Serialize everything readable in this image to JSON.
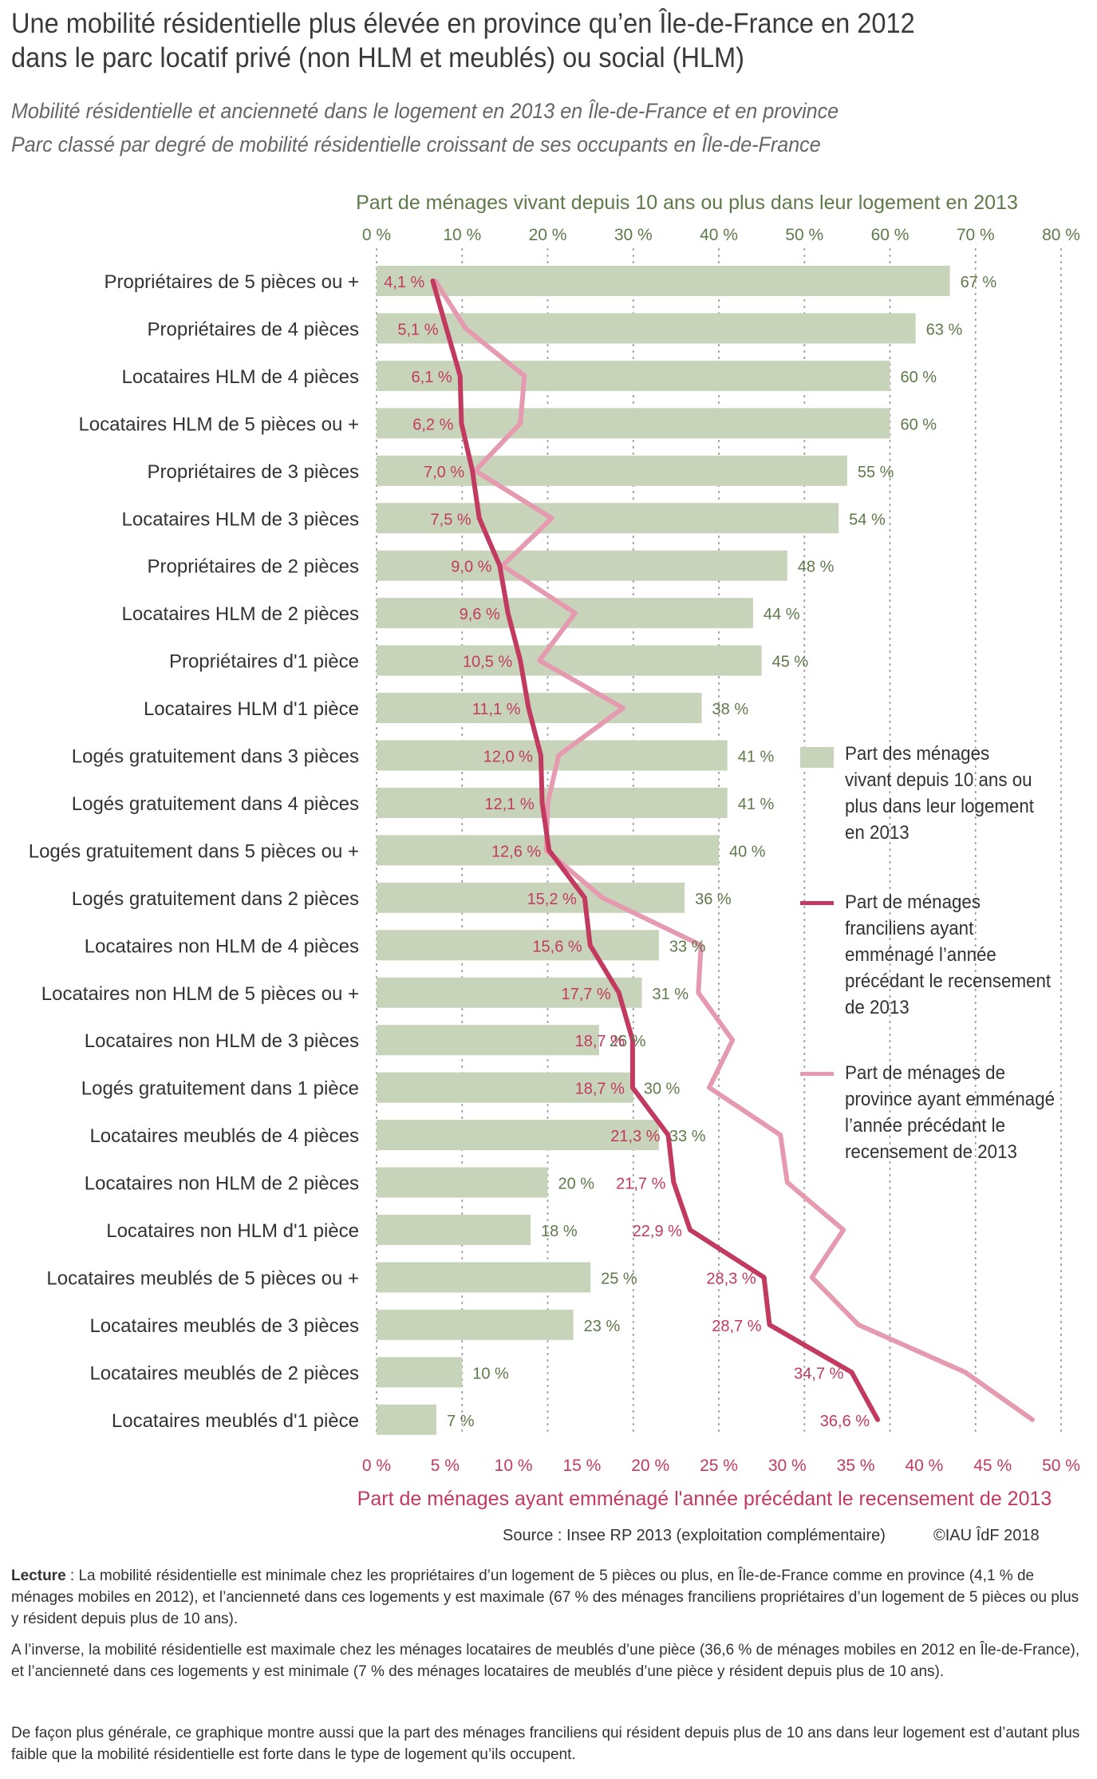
{
  "title_lines": [
    "Une mobilité résidentielle plus élevée en province qu’en Île-de-France en 2012",
    "dans le parc locatif privé (non HLM et meublés) ou social (HLM)"
  ],
  "subtitle_lines": [
    "Mobilité résidentielle et ancienneté dans le logement en 2013 en Île-de-France et en province",
    "Parc classé par degré de mobilité résidentielle croissant de ses occupants en Île-de-France"
  ],
  "chart_data": {
    "type": "bar",
    "orientation": "horizontal",
    "top_axis": {
      "label": "Part de ménages vivant depuis 10 ans ou plus dans leur logement en 2013",
      "ticks": [
        "0 %",
        "10 %",
        "20 %",
        "30 %",
        "40 %",
        "50 %",
        "60 %",
        "70 %",
        "80 %"
      ],
      "range": [
        0,
        80
      ]
    },
    "bottom_axis": {
      "label": "Part de ménages ayant emménagé l'année précédant le recensement de 2013",
      "ticks": [
        "0 %",
        "5 %",
        "10 %",
        "15 %",
        "20 %",
        "25 %",
        "30 %",
        "35 %",
        "40 %",
        "45 %",
        "50 %"
      ],
      "range": [
        0,
        50
      ]
    },
    "grid": "dotted vertical lines",
    "categories": [
      "Propriétaires de 5 pièces ou +",
      "Propriétaires de 4 pièces",
      "Locataires HLM de 4 pièces",
      "Locataires HLM de 5 pièces ou +",
      "Propriétaires de 3 pièces",
      "Locataires HLM de 3 pièces",
      "Propriétaires de 2 pièces",
      "Locataires HLM de 2 pièces",
      "Propriétaires d'1 pièce",
      "Locataires HLM d'1 pièce",
      "Logés gratuitement dans 3 pièces",
      "Logés gratuitement dans 4 pièces",
      "Logés gratuitement dans 5 pièces ou +",
      "Logés gratuitement dans 2 pièces",
      "Locataires non HLM de 4 pièces",
      "Locataires non HLM de 5 pièces ou +",
      "Locataires non HLM de 3 pièces",
      "Logés gratuitement dans 1 pièce",
      "Locataires meublés de 4 pièces",
      "Locataires non HLM de 2 pièces",
      "Locataires non HLM d'1 pièce",
      "Locataires meublés de 5 pièces ou +",
      "Locataires meublés de 3 pièces",
      "Locataires meublés de 2 pièces",
      "Locataires meublés d'1 pièce"
    ],
    "series": [
      {
        "name": "Part des ménages vivant depuis 10 ans ou plus dans leur logement en 2013",
        "type": "bar",
        "axis": "top",
        "color": "#c8d4ba",
        "label_color": "#5f7a4a",
        "values": [
          67,
          63,
          60,
          60,
          55,
          54,
          48,
          44,
          45,
          38,
          41,
          41,
          40,
          36,
          33,
          31,
          26,
          30,
          33,
          20,
          18,
          25,
          23,
          10,
          7
        ],
        "labels": [
          "67 %",
          "63 %",
          "60 %",
          "60 %",
          "55 %",
          "54 %",
          "48 %",
          "44 %",
          "45 %",
          "38 %",
          "41 %",
          "41 %",
          "40 %",
          "36 %",
          "33 %",
          "31 %",
          "26 %",
          "30 %",
          "33 %",
          "20 %",
          "18 %",
          "25 %",
          "23 %",
          "10 %",
          "7 %"
        ]
      },
      {
        "name": "Part de ménages franciliens ayant emménagé l’année précédant le recensement de 2013",
        "type": "line",
        "axis": "bottom",
        "color": "#c23a60",
        "values": [
          4.1,
          5.1,
          6.1,
          6.2,
          7.0,
          7.5,
          9.0,
          9.6,
          10.5,
          11.1,
          12.0,
          12.1,
          12.6,
          15.2,
          15.6,
          17.7,
          18.7,
          18.7,
          21.3,
          21.7,
          22.9,
          28.3,
          28.7,
          34.7,
          36.6
        ],
        "labels": [
          "4,1 %",
          "5,1 %",
          "6,1 %",
          "6,2 %",
          "7,0 %",
          "7,5 %",
          "9,0 %",
          "9,6 %",
          "10,5 %",
          "11,1 %",
          "12,0 %",
          "12,1 %",
          "12,6 %",
          "15,2 %",
          "15,6 %",
          "17,7 %",
          "18,7 %",
          "18,7 %",
          "21,3 %",
          "21,7 %",
          "22,9 %",
          "28,3 %",
          "28,7 %",
          "34,7 %",
          "36,6 %"
        ]
      },
      {
        "name": "Part de ménages de province ayant emménagé l’année précédant le recensement de 2013",
        "type": "line",
        "axis": "bottom",
        "color": "#e69ab0",
        "values": [
          4.3,
          6.5,
          10.8,
          10.5,
          7.2,
          12.8,
          9.2,
          14.5,
          11.9,
          18.0,
          13.3,
          12.5,
          12.4,
          16.5,
          23.7,
          23.5,
          26.0,
          24.3,
          29.5,
          30.0,
          34.1,
          31.8,
          35.2,
          43.0,
          47.9
        ]
      }
    ],
    "legend": {
      "position": "right, middle",
      "entries": [
        "Part des ménages vivant depuis 10 ans ou plus dans leur logement en 2013",
        "Part de ménages franciliens ayant emménagé l’année précédant le recensement de 2013",
        "Part de ménages de province ayant emménagé l’année précédant le recensement de 2013"
      ]
    }
  },
  "legend_text": [
    "Part des ménages\nvivant depuis 10 ans ou\nplus dans leur logement\nen 2013",
    "Part de ménages\nfranciliens ayant\nemménagé l’année\nprécédant le recensement\nde 2013",
    "Part de ménages de\nprovince ayant emménagé\nl’année précédant le\nrecensement de 2013"
  ],
  "source": "Source : Insee  RP 2013 (exploitation complémentaire)",
  "copyright": "©IAU ÎdF 2018",
  "notes": {
    "lecture_label": "Lecture",
    "lecture_text": " : La mobilité résidentielle est minimale chez les propriétaires d’un logement de 5 pièces ou plus, en Île-de-France comme en province (4,1 % de ménages mobiles en 2012), et l’ancienneté dans ces logements y est maximale (67 % des ménages franciliens propriétaires d’un logement de 5 pièces ou plus y résident depuis plus de 10 ans).",
    "paragraph2": "A l’inverse, la mobilité résidentielle est maximale chez les ménages locataires de meublés d’une pièce (36,6 % de ménages mobiles en 2012 en Île-de-France), et l’ancienneté dans ces logements y est minimale (7 % des ménages locataires de meublés d’une pièce y résident depuis plus de 10 ans).",
    "paragraph3": "De façon plus générale, ce graphique montre aussi que la part des ménages franciliens qui résident depuis plus de 10 ans dans leur logement est d’autant plus faible que la mobilité résidentielle est forte dans le type de logement qu’ils occupent."
  }
}
